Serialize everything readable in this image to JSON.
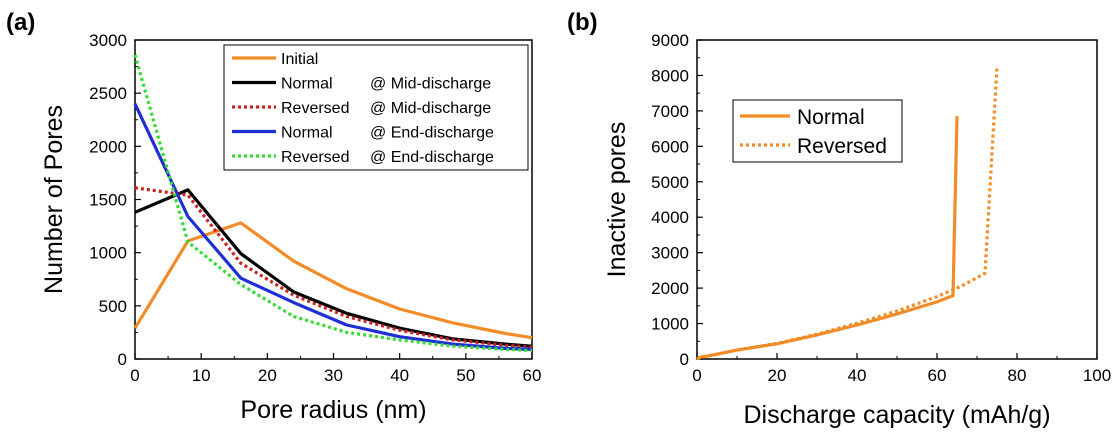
{
  "chart_data": [
    {
      "panel_label": "(a)",
      "type": "line",
      "xlabel": "Pore radius (nm)",
      "ylabel": "Number of Pores",
      "xlim": [
        0,
        60
      ],
      "ylim": [
        0,
        3000
      ],
      "xticks": [
        "0",
        "10",
        "20",
        "30",
        "40",
        "50",
        "60"
      ],
      "yticks": [
        "0",
        "500",
        "1000",
        "1500",
        "2000",
        "2500",
        "3000"
      ],
      "grid": false,
      "legend_position": "top-right",
      "series": [
        {
          "name": "Initial",
          "legend_left": "Initial",
          "legend_right": "",
          "color": "#f28c28",
          "dash": "solid",
          "x": [
            0,
            8,
            16,
            24,
            32,
            40,
            48,
            56,
            60
          ],
          "y": [
            290,
            1110,
            1280,
            920,
            660,
            470,
            340,
            240,
            200
          ]
        },
        {
          "name": "Normal @ Mid-discharge",
          "legend_left": "Normal",
          "legend_right": "@ Mid-discharge",
          "color": "#000000",
          "dash": "solid",
          "x": [
            0,
            8,
            16,
            24,
            32,
            40,
            48,
            56,
            60
          ],
          "y": [
            1380,
            1590,
            990,
            630,
            430,
            290,
            190,
            140,
            120
          ]
        },
        {
          "name": "Reversed @ Mid-discharge",
          "legend_left": "Reversed",
          "legend_right": "@ Mid-discharge",
          "color": "#cc2222",
          "dash": "dotted",
          "x": [
            0,
            8,
            16,
            24,
            32,
            40,
            48,
            56,
            60
          ],
          "y": [
            1610,
            1540,
            900,
            600,
            400,
            270,
            180,
            130,
            110
          ]
        },
        {
          "name": "Normal @ End-discharge",
          "legend_left": "Normal",
          "legend_right": "@ End-discharge",
          "color": "#1f2fd6",
          "dash": "solid",
          "x": [
            0,
            8,
            16,
            24,
            32,
            40,
            48,
            56,
            60
          ],
          "y": [
            2400,
            1340,
            760,
            530,
            320,
            210,
            140,
            100,
            90
          ]
        },
        {
          "name": "Reversed @ End-discharge",
          "legend_left": "Reversed",
          "legend_right": "@ End-discharge",
          "color": "#33dd33",
          "dash": "dotted",
          "x": [
            0,
            8,
            16,
            24,
            32,
            40,
            48,
            56,
            60
          ],
          "y": [
            2860,
            1100,
            700,
            400,
            250,
            180,
            120,
            90,
            80
          ]
        }
      ]
    },
    {
      "panel_label": "(b)",
      "type": "line",
      "xlabel": "Discharge capacity (mAh/g)",
      "ylabel": "Inactive pores",
      "xlim": [
        0,
        100
      ],
      "ylim": [
        0,
        9000
      ],
      "xticks": [
        "0",
        "20",
        "40",
        "60",
        "80",
        "100"
      ],
      "yticks": [
        "0",
        "1000",
        "2000",
        "3000",
        "4000",
        "5000",
        "6000",
        "7000",
        "8000",
        "9000"
      ],
      "grid": false,
      "legend_position": "top-left",
      "series": [
        {
          "name": "Normal",
          "color": "#f28c28",
          "dash": "solid",
          "x": [
            0,
            1,
            3,
            10,
            20,
            30,
            40,
            50,
            60,
            64,
            65
          ],
          "y": [
            0,
            60,
            90,
            250,
            430,
            680,
            960,
            1270,
            1610,
            1790,
            6850
          ]
        },
        {
          "name": "Reversed",
          "color": "#f28c28",
          "dash": "dotted",
          "x": [
            0,
            1,
            3,
            10,
            20,
            30,
            40,
            50,
            60,
            66,
            72,
            75
          ],
          "y": [
            0,
            60,
            90,
            250,
            440,
            700,
            1010,
            1350,
            1760,
            2050,
            2420,
            8250
          ]
        }
      ]
    }
  ]
}
